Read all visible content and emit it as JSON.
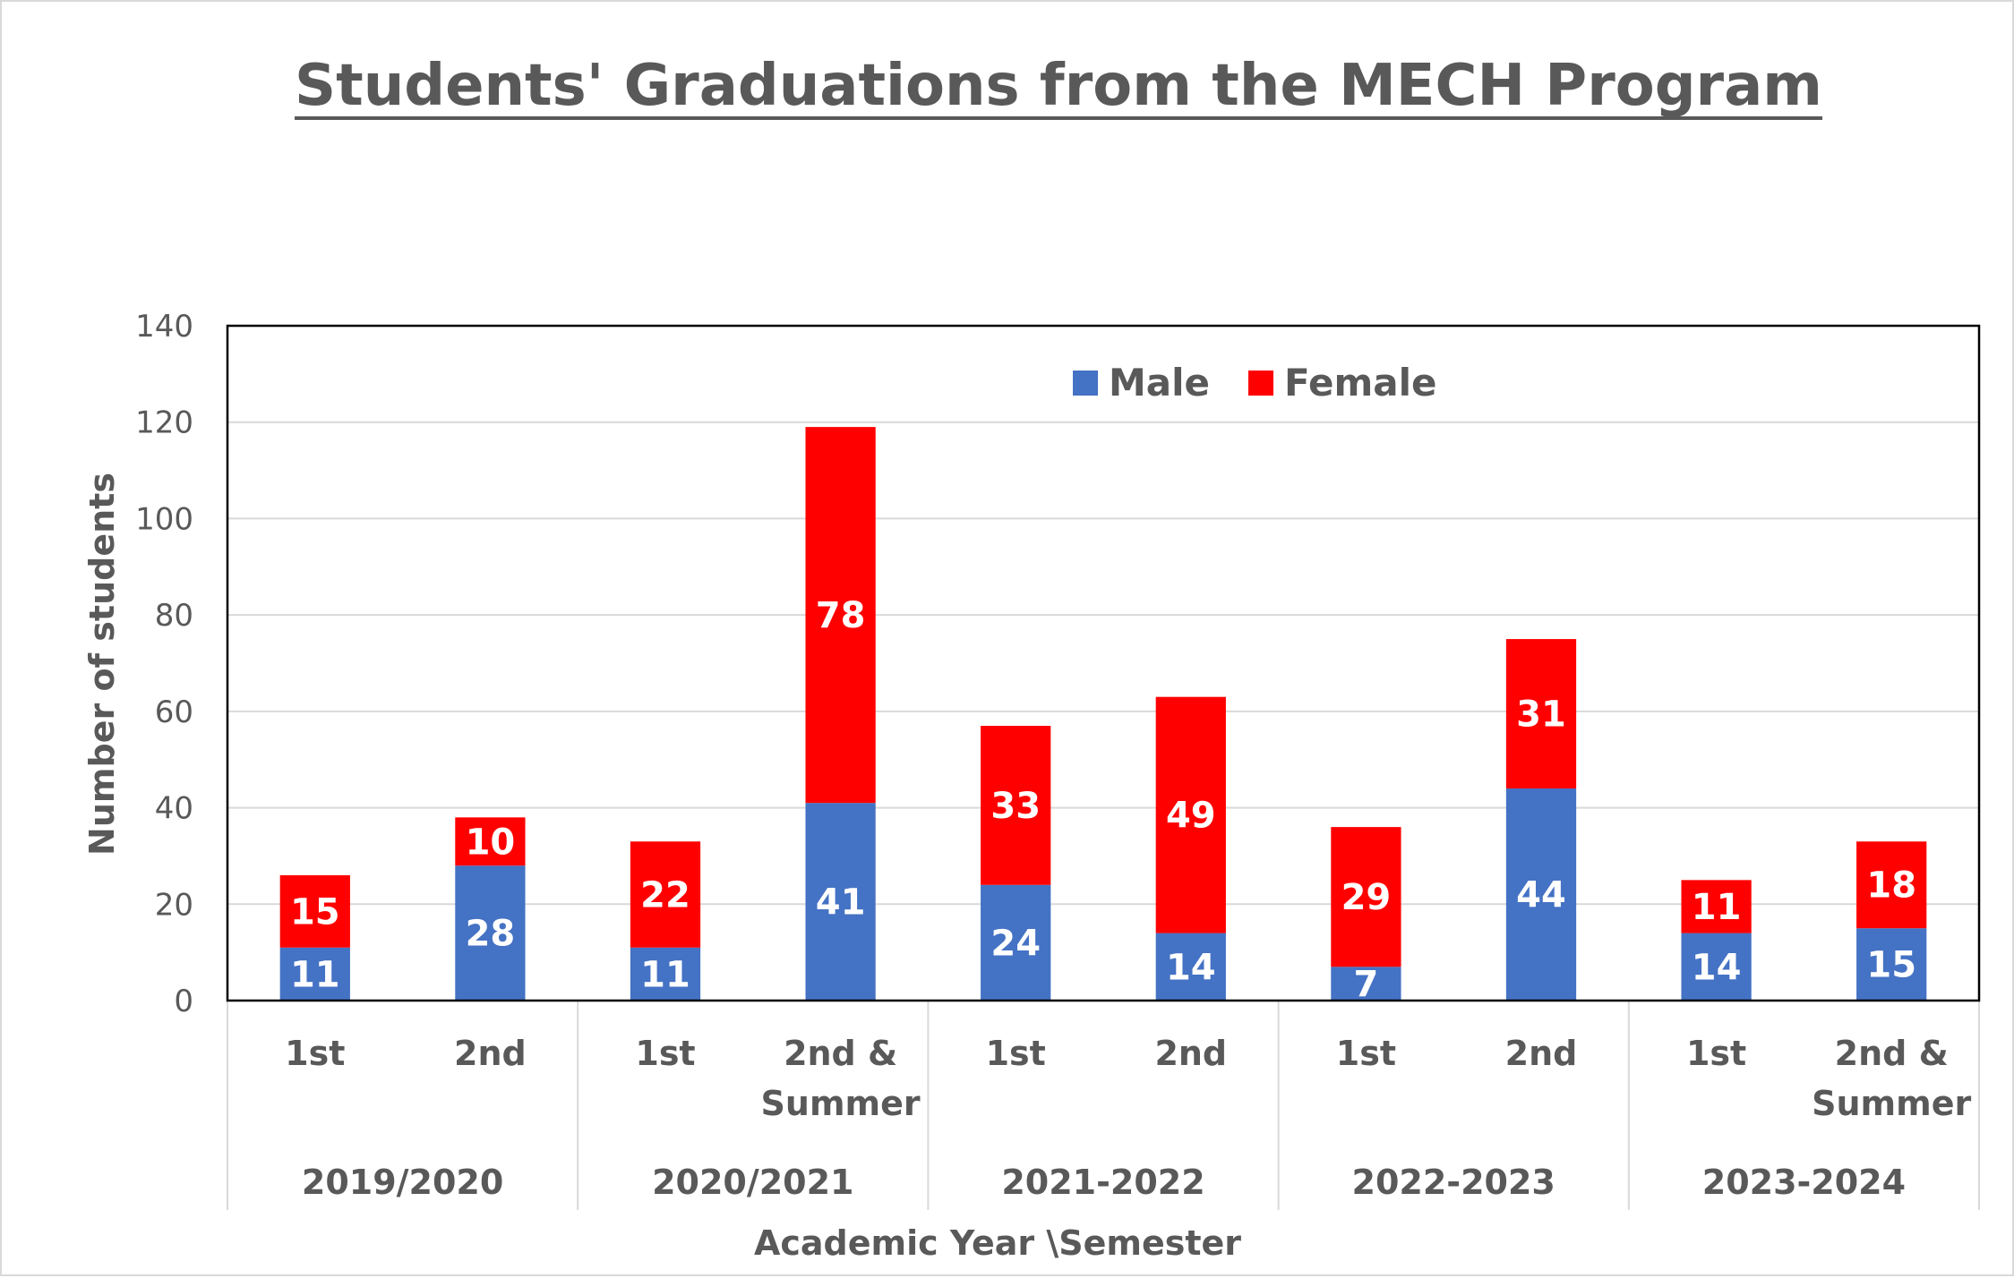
{
  "chart_data": {
    "type": "bar",
    "stacked": true,
    "title": "Students' Graduations from the MECH Program",
    "xlabel": "Academic Year \\Semester",
    "ylabel": "Number of students",
    "ylim": [
      0,
      140
    ],
    "yticks": [
      "0",
      "20",
      "40",
      "60",
      "80",
      "100",
      "120",
      "140"
    ],
    "grid": true,
    "legend_position": "top-center",
    "groups": [
      {
        "label": "2019/2020",
        "categories": [
          [
            "1st"
          ],
          [
            "2nd"
          ]
        ]
      },
      {
        "label": "2020/2021",
        "categories": [
          [
            "1st"
          ],
          [
            "2nd &",
            "Summer"
          ]
        ]
      },
      {
        "label": "2021-2022",
        "categories": [
          [
            "1st"
          ],
          [
            "2nd"
          ]
        ]
      },
      {
        "label": "2022-2023",
        "categories": [
          [
            "1st"
          ],
          [
            "2nd"
          ]
        ]
      },
      {
        "label": "2023-2024",
        "categories": [
          [
            "1st"
          ],
          [
            "2nd &",
            "Summer"
          ]
        ]
      }
    ],
    "series": [
      {
        "name": "Male",
        "color": "#4472c4",
        "values": [
          11,
          28,
          11,
          41,
          24,
          14,
          7,
          44,
          14,
          15
        ]
      },
      {
        "name": "Female",
        "color": "#ff0000",
        "values": [
          15,
          10,
          22,
          78,
          33,
          49,
          29,
          31,
          11,
          18
        ]
      }
    ]
  }
}
